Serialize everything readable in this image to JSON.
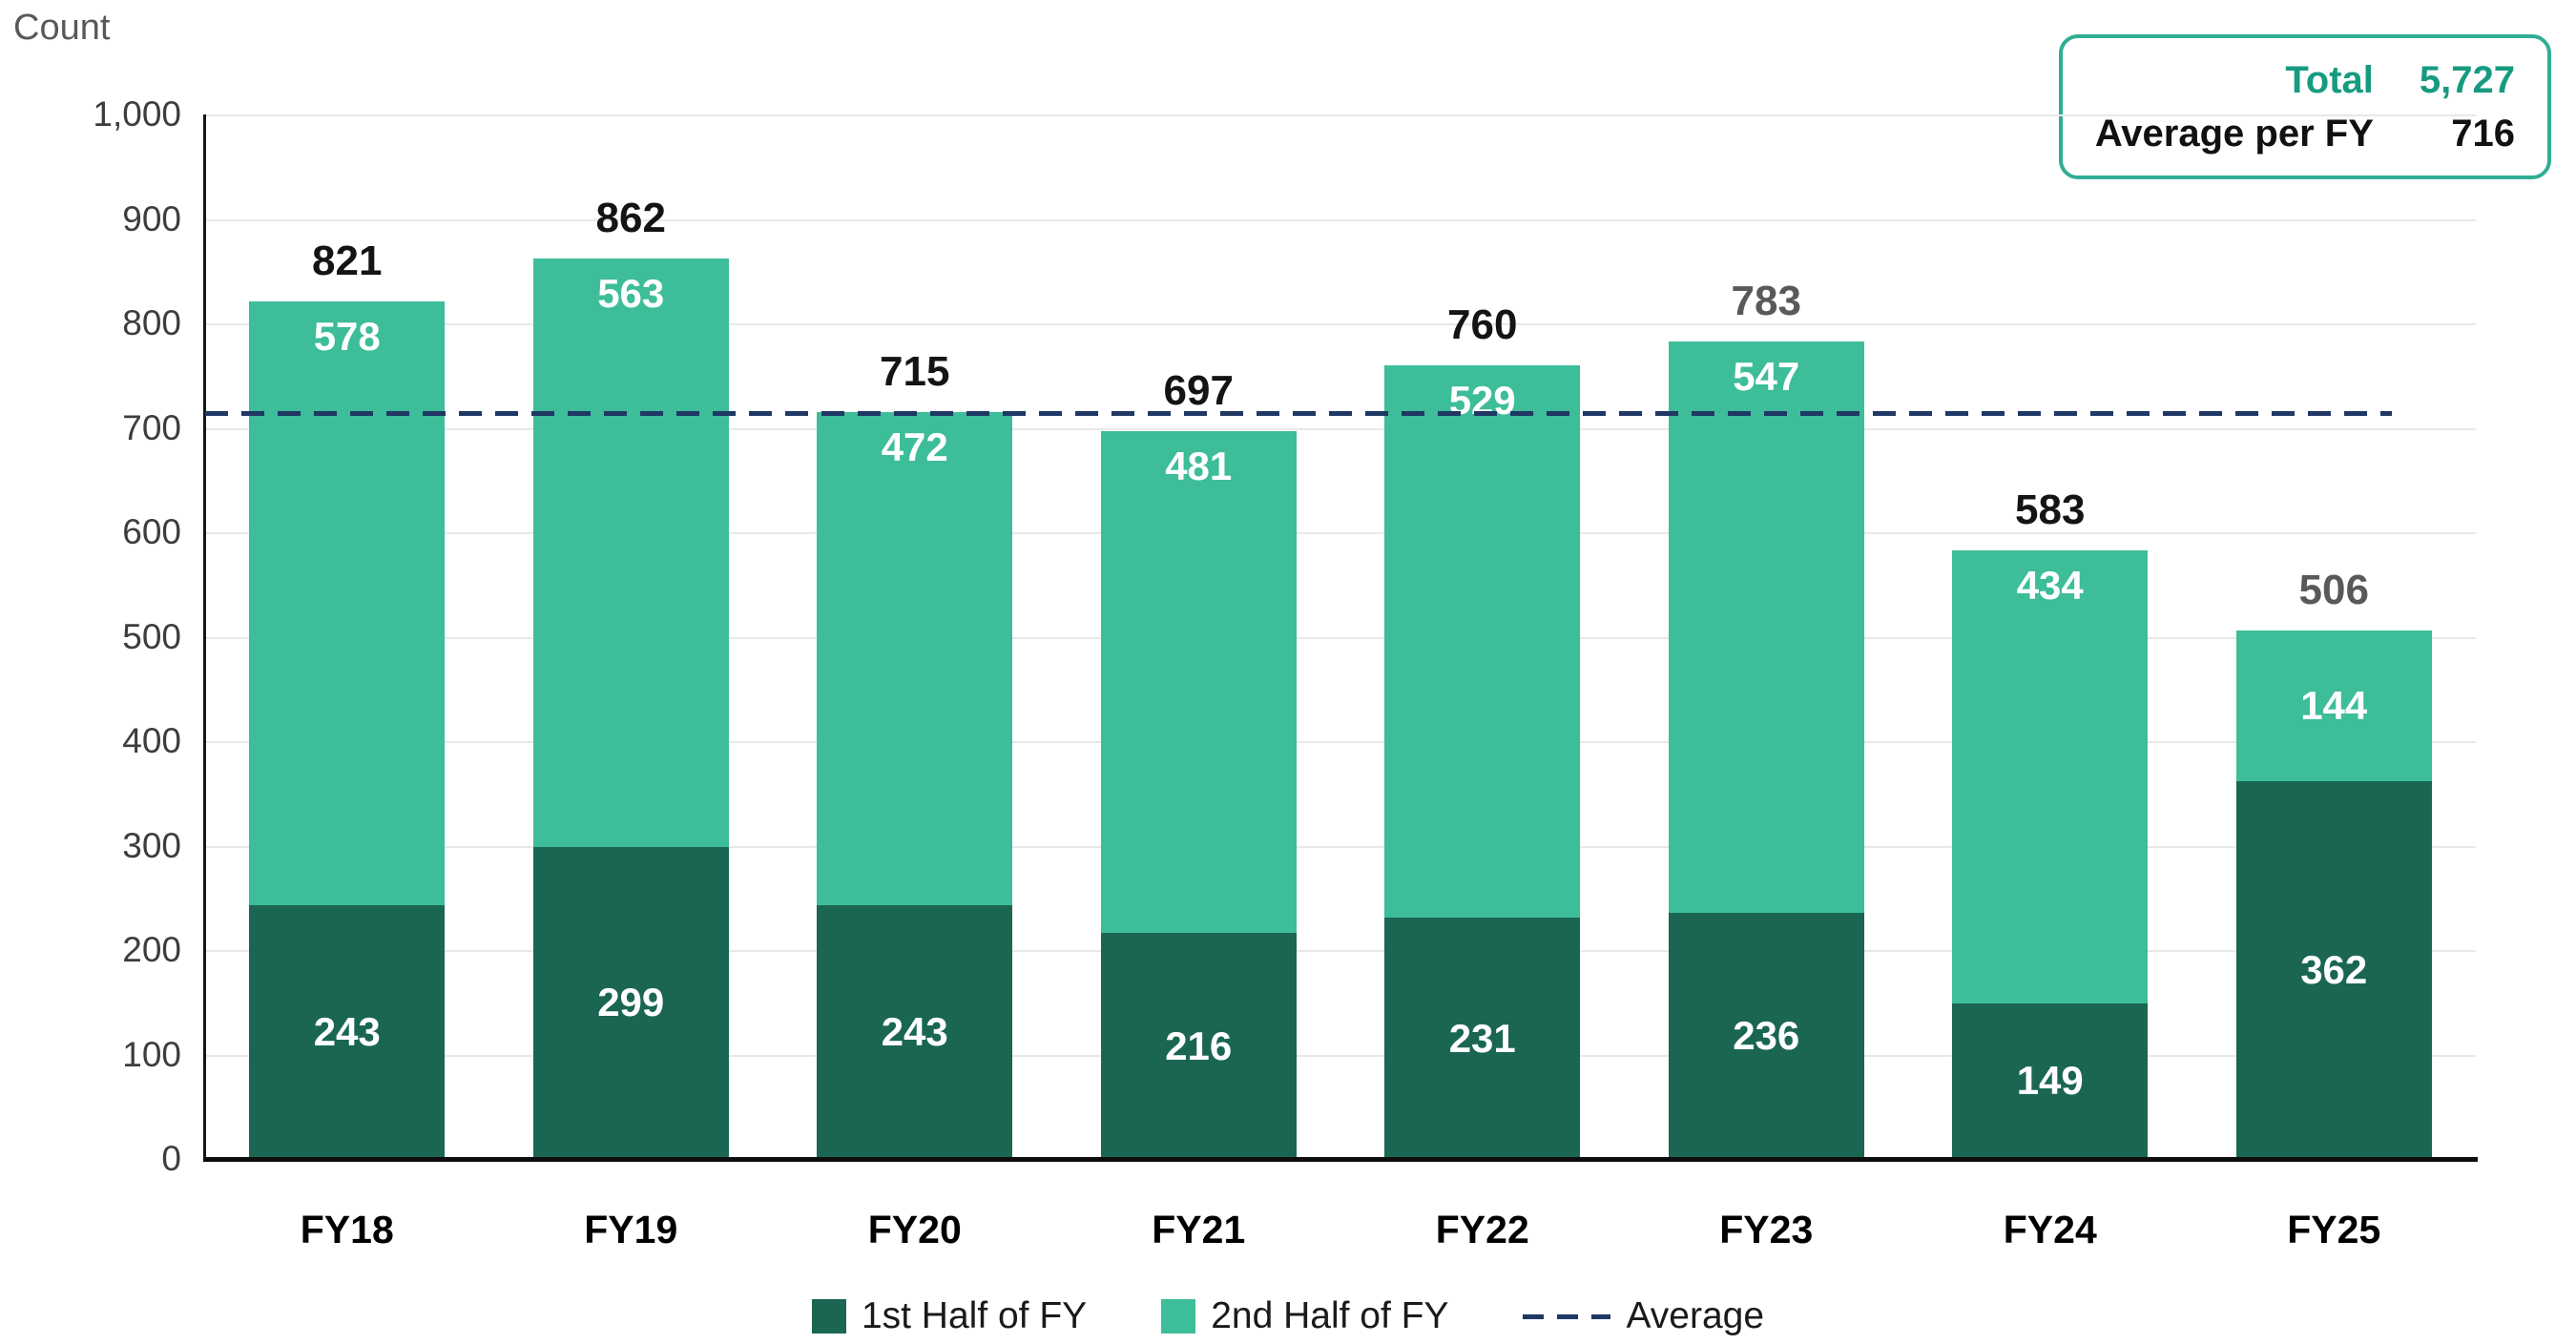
{
  "chart_data": {
    "type": "bar",
    "stacked": true,
    "title": "",
    "ylabel": "Count",
    "xlabel": "",
    "ylim": [
      0,
      1000
    ],
    "ytick_interval": 100,
    "yticks": [
      "0",
      "100",
      "200",
      "300",
      "400",
      "500",
      "600",
      "700",
      "800",
      "900",
      "1,000"
    ],
    "categories": [
      "FY18",
      "FY19",
      "FY20",
      "FY21",
      "FY22",
      "FY23",
      "FY24",
      "FY25"
    ],
    "series": [
      {
        "name": "1st Half of FY",
        "color": "#1a6653",
        "values": [
          243,
          299,
          243,
          216,
          231,
          236,
          149,
          362
        ]
      },
      {
        "name": "2nd Half of FY",
        "color": "#3dbd99",
        "values": [
          578,
          563,
          472,
          481,
          529,
          547,
          434,
          144
        ]
      }
    ],
    "totals": [
      821,
      862,
      715,
      697,
      760,
      783,
      583,
      506
    ],
    "total_colors": [
      "#141414",
      "#141414",
      "#141414",
      "#141414",
      "#141414",
      "#595959",
      "#141414",
      "#595959"
    ],
    "average": {
      "label": "Average",
      "value": 716,
      "color": "#1f3864"
    },
    "value_label_color": "#ffffff",
    "grid": true,
    "legend_position": "bottom"
  },
  "summary_box": {
    "border_color": "#2fae93",
    "rows": [
      {
        "label": "Total",
        "value": "5,727",
        "color": "#179b80"
      },
      {
        "label": "Average per FY",
        "value": "716",
        "color": "#111111"
      }
    ]
  }
}
